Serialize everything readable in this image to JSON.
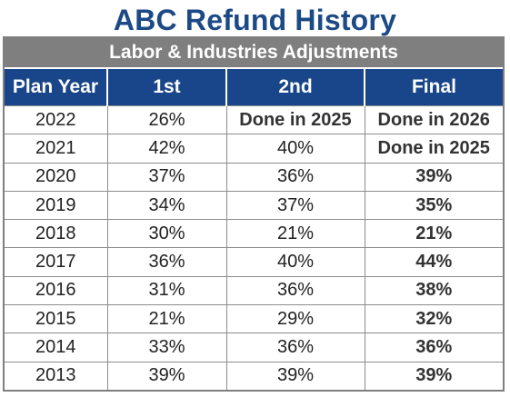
{
  "title": "ABC Refund History",
  "subtitle": "Labor & Industries Adjustments",
  "colors": {
    "title": "#1c4a86",
    "header_bg": "#19468a",
    "subhead_bg": "#7f7f7f"
  },
  "columns": [
    "Plan Year",
    "1st",
    "2nd",
    "Final"
  ],
  "rows": [
    {
      "year": "2022",
      "first": "26%",
      "second": "Done in 2025",
      "final": "Done in 2026"
    },
    {
      "year": "2021",
      "first": "42%",
      "second": "40%",
      "final": "Done in 2025"
    },
    {
      "year": "2020",
      "first": "37%",
      "second": "36%",
      "final": "39%"
    },
    {
      "year": "2019",
      "first": "34%",
      "second": "37%",
      "final": "35%"
    },
    {
      "year": "2018",
      "first": "30%",
      "second": "21%",
      "final": "21%"
    },
    {
      "year": "2017",
      "first": "36%",
      "second": "40%",
      "final": "44%"
    },
    {
      "year": "2016",
      "first": "31%",
      "second": "36%",
      "final": "38%"
    },
    {
      "year": "2015",
      "first": "21%",
      "second": "29%",
      "final": "32%"
    },
    {
      "year": "2014",
      "first": "33%",
      "second": "36%",
      "final": "36%"
    },
    {
      "year": "2013",
      "first": "39%",
      "second": "39%",
      "final": "39%"
    }
  ]
}
